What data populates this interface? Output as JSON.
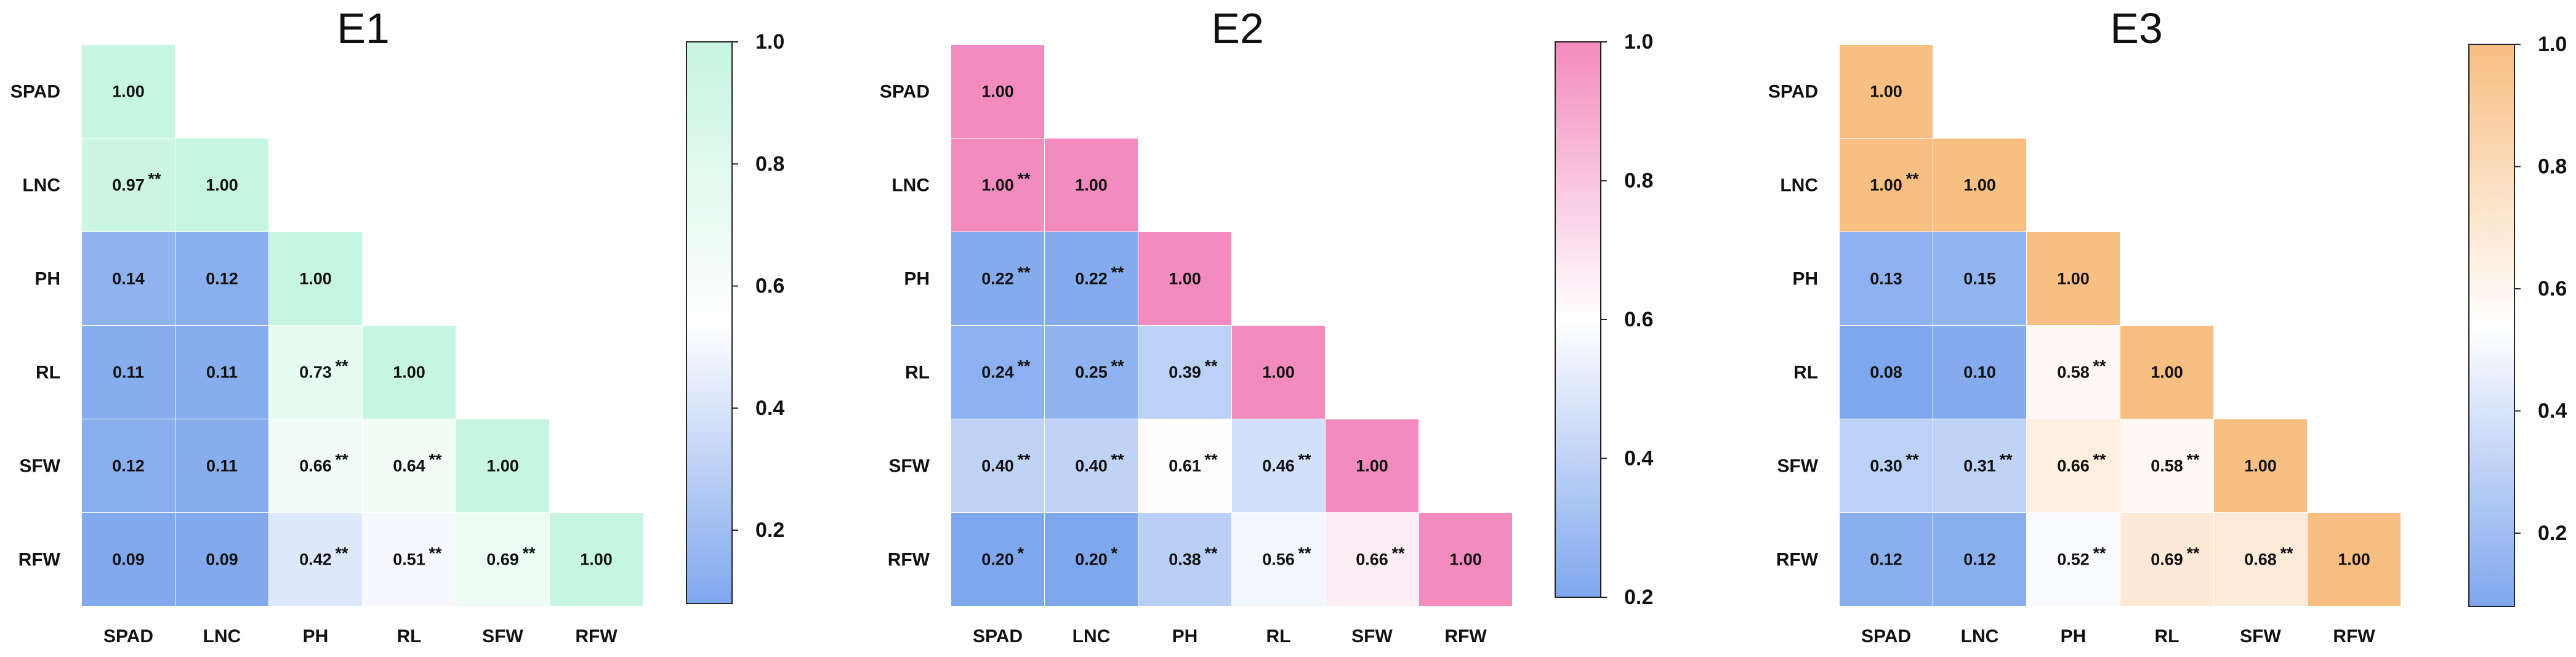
{
  "figure": {
    "type": "heatmap",
    "variables": [
      "SPAD",
      "LNC",
      "PH",
      "RL",
      "SFW",
      "RFW"
    ],
    "low_color": "#7FA7EE",
    "mid_color": "#FFFFFF"
  },
  "chart_data": [
    {
      "type": "heatmap",
      "title": "E1",
      "high_color": "#C6F5E1",
      "colorbar": {
        "min": 0.08,
        "max": 1.0,
        "ticks": [
          "0.2",
          "0.4",
          "0.6",
          "0.8",
          "1.0"
        ]
      },
      "rows": [
        "SPAD",
        "LNC",
        "PH",
        "RL",
        "SFW",
        "RFW"
      ],
      "cols": [
        "SPAD",
        "LNC",
        "PH",
        "RL",
        "SFW",
        "RFW"
      ],
      "cells": [
        [
          {
            "v": "1.00",
            "s": ""
          }
        ],
        [
          {
            "v": "0.97",
            "s": "**"
          },
          {
            "v": "1.00",
            "s": ""
          }
        ],
        [
          {
            "v": "0.14",
            "s": ""
          },
          {
            "v": "0.12",
            "s": ""
          },
          {
            "v": "1.00",
            "s": ""
          }
        ],
        [
          {
            "v": "0.11",
            "s": ""
          },
          {
            "v": "0.11",
            "s": ""
          },
          {
            "v": "0.73",
            "s": "**"
          },
          {
            "v": "1.00",
            "s": ""
          }
        ],
        [
          {
            "v": "0.12",
            "s": ""
          },
          {
            "v": "0.11",
            "s": ""
          },
          {
            "v": "0.66",
            "s": "**"
          },
          {
            "v": "0.64",
            "s": "**"
          },
          {
            "v": "1.00",
            "s": ""
          }
        ],
        [
          {
            "v": "0.09",
            "s": ""
          },
          {
            "v": "0.09",
            "s": ""
          },
          {
            "v": "0.42",
            "s": "**"
          },
          {
            "v": "0.51",
            "s": "**"
          },
          {
            "v": "0.69",
            "s": "**"
          },
          {
            "v": "1.00",
            "s": ""
          }
        ]
      ]
    },
    {
      "type": "heatmap",
      "title": "E2",
      "high_color": "#F38BBE",
      "colorbar": {
        "min": 0.2,
        "max": 1.0,
        "ticks": [
          "0.2",
          "0.4",
          "0.6",
          "0.8",
          "1.0"
        ]
      },
      "rows": [
        "SPAD",
        "LNC",
        "PH",
        "RL",
        "SFW",
        "RFW"
      ],
      "cols": [
        "SPAD",
        "LNC",
        "PH",
        "RL",
        "SFW",
        "RFW"
      ],
      "cells": [
        [
          {
            "v": "1.00",
            "s": ""
          }
        ],
        [
          {
            "v": "1.00",
            "s": "**"
          },
          {
            "v": "1.00",
            "s": ""
          }
        ],
        [
          {
            "v": "0.22",
            "s": "**"
          },
          {
            "v": "0.22",
            "s": "**"
          },
          {
            "v": "1.00",
            "s": ""
          }
        ],
        [
          {
            "v": "0.24",
            "s": "**"
          },
          {
            "v": "0.25",
            "s": "**"
          },
          {
            "v": "0.39",
            "s": "**"
          },
          {
            "v": "1.00",
            "s": ""
          }
        ],
        [
          {
            "v": "0.40",
            "s": "**"
          },
          {
            "v": "0.40",
            "s": "**"
          },
          {
            "v": "0.61",
            "s": "**"
          },
          {
            "v": "0.46",
            "s": "**"
          },
          {
            "v": "1.00",
            "s": ""
          }
        ],
        [
          {
            "v": "0.20",
            "s": "*"
          },
          {
            "v": "0.20",
            "s": "*"
          },
          {
            "v": "0.38",
            "s": "**"
          },
          {
            "v": "0.56",
            "s": "**"
          },
          {
            "v": "0.66",
            "s": "**"
          },
          {
            "v": "1.00",
            "s": ""
          }
        ]
      ]
    },
    {
      "type": "heatmap",
      "title": "E3",
      "high_color": "#F8BE82",
      "colorbar": {
        "min": 0.08,
        "max": 1.0,
        "ticks": [
          "0.2",
          "0.4",
          "0.6",
          "0.8",
          "1.0"
        ]
      },
      "rows": [
        "SPAD",
        "LNC",
        "PH",
        "RL",
        "SFW",
        "RFW"
      ],
      "cols": [
        "SPAD",
        "LNC",
        "PH",
        "RL",
        "SFW",
        "RFW"
      ],
      "cells": [
        [
          {
            "v": "1.00",
            "s": ""
          }
        ],
        [
          {
            "v": "1.00",
            "s": "**"
          },
          {
            "v": "1.00",
            "s": ""
          }
        ],
        [
          {
            "v": "0.13",
            "s": ""
          },
          {
            "v": "0.15",
            "s": ""
          },
          {
            "v": "1.00",
            "s": ""
          }
        ],
        [
          {
            "v": "0.08",
            "s": ""
          },
          {
            "v": "0.10",
            "s": ""
          },
          {
            "v": "0.58",
            "s": "**"
          },
          {
            "v": "1.00",
            "s": ""
          }
        ],
        [
          {
            "v": "0.30",
            "s": "**"
          },
          {
            "v": "0.31",
            "s": "**"
          },
          {
            "v": "0.66",
            "s": "**"
          },
          {
            "v": "0.58",
            "s": "**"
          },
          {
            "v": "1.00",
            "s": ""
          }
        ],
        [
          {
            "v": "0.12",
            "s": ""
          },
          {
            "v": "0.12",
            "s": ""
          },
          {
            "v": "0.52",
            "s": "**"
          },
          {
            "v": "0.69",
            "s": "**"
          },
          {
            "v": "0.68",
            "s": "**"
          },
          {
            "v": "1.00",
            "s": ""
          }
        ]
      ]
    }
  ]
}
